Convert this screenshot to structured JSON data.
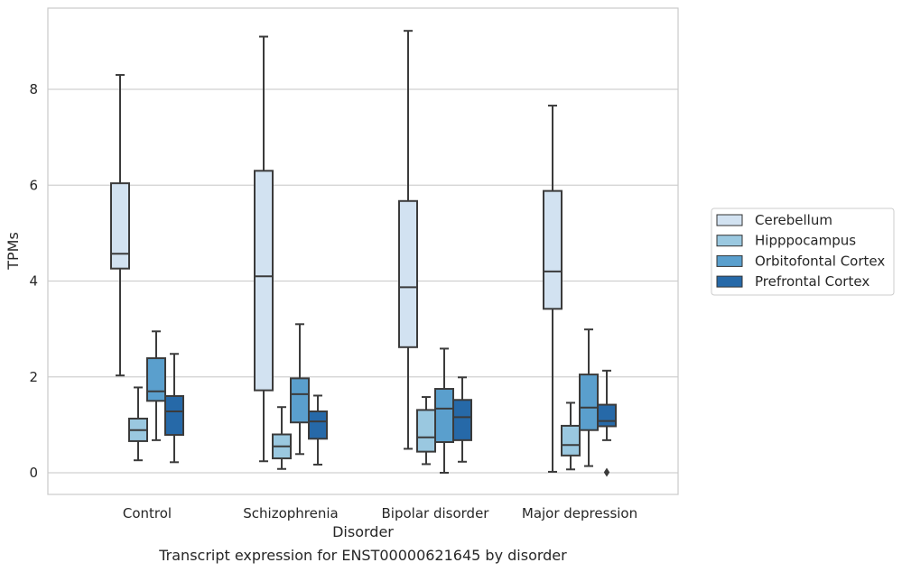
{
  "chart_data": {
    "type": "box",
    "title": "",
    "caption": "Transcript expression for ENST00000621645 by disorder",
    "xlabel": "Disorder",
    "ylabel": "TPMs",
    "ylim": [
      -0.45,
      9.7
    ],
    "yticks": [
      0,
      2,
      4,
      6,
      8
    ],
    "grid": "horizontal",
    "legend_position": "right",
    "categories": [
      "Control",
      "Schizophrenia",
      "Bipolar disorder",
      "Major depression"
    ],
    "series": [
      {
        "name": "Cerebellum",
        "color": "#d2e2f1",
        "boxes": [
          {
            "whislo": 2.03,
            "q1": 4.26,
            "med": 4.57,
            "q3": 6.04,
            "whishi": 8.3,
            "fliers": []
          },
          {
            "whislo": 0.24,
            "q1": 1.72,
            "med": 4.1,
            "q3": 6.3,
            "whishi": 9.1,
            "fliers": []
          },
          {
            "whislo": 0.5,
            "q1": 2.62,
            "med": 3.87,
            "q3": 5.67,
            "whishi": 9.22,
            "fliers": []
          },
          {
            "whislo": 0.02,
            "q1": 3.42,
            "med": 4.2,
            "q3": 5.88,
            "whishi": 7.66,
            "fliers": []
          }
        ]
      },
      {
        "name": "Hipppocampus",
        "color": "#9ac8e0",
        "boxes": [
          {
            "whislo": 0.26,
            "q1": 0.66,
            "med": 0.89,
            "q3": 1.13,
            "whishi": 1.78,
            "fliers": []
          },
          {
            "whislo": 0.08,
            "q1": 0.3,
            "med": 0.55,
            "q3": 0.8,
            "whishi": 1.37,
            "fliers": []
          },
          {
            "whislo": 0.18,
            "q1": 0.44,
            "med": 0.74,
            "q3": 1.31,
            "whishi": 1.58,
            "fliers": []
          },
          {
            "whislo": 0.07,
            "q1": 0.36,
            "med": 0.58,
            "q3": 0.98,
            "whishi": 1.46,
            "fliers": []
          }
        ]
      },
      {
        "name": "Orbitofontal Cortex",
        "color": "#5a9fcd",
        "boxes": [
          {
            "whislo": 0.68,
            "q1": 1.5,
            "med": 1.7,
            "q3": 2.39,
            "whishi": 2.95,
            "fliers": []
          },
          {
            "whislo": 0.39,
            "q1": 1.05,
            "med": 1.64,
            "q3": 1.97,
            "whishi": 3.1,
            "fliers": []
          },
          {
            "whislo": 0.0,
            "q1": 0.64,
            "med": 1.34,
            "q3": 1.75,
            "whishi": 2.59,
            "fliers": []
          },
          {
            "whislo": 0.14,
            "q1": 0.89,
            "med": 1.36,
            "q3": 2.05,
            "whishi": 2.99,
            "fliers": []
          }
        ]
      },
      {
        "name": "Prefrontal Cortex",
        "color": "#2669a8",
        "boxes": [
          {
            "whislo": 0.22,
            "q1": 0.79,
            "med": 1.28,
            "q3": 1.6,
            "whishi": 2.48,
            "fliers": []
          },
          {
            "whislo": 0.17,
            "q1": 0.71,
            "med": 1.07,
            "q3": 1.28,
            "whishi": 1.61,
            "fliers": []
          },
          {
            "whislo": 0.23,
            "q1": 0.68,
            "med": 1.16,
            "q3": 1.52,
            "whishi": 1.99,
            "fliers": []
          },
          {
            "whislo": 0.68,
            "q1": 0.97,
            "med": 1.08,
            "q3": 1.42,
            "whishi": 2.13,
            "fliers": [
              0.01
            ]
          }
        ]
      }
    ]
  }
}
